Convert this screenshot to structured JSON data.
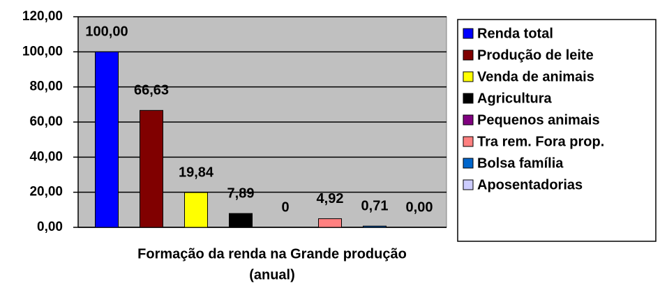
{
  "chart_data": {
    "type": "bar",
    "xlabel": [
      "Formação da renda na Grande produção",
      "(anual)"
    ],
    "series": [
      {
        "name": "Renda total",
        "color": "#0000ff",
        "values": [
          100
        ],
        "value_labels": [
          "100,00"
        ]
      },
      {
        "name": "Produção de leite",
        "color": "#800000",
        "values": [
          66.63
        ],
        "value_labels": [
          "66,63"
        ]
      },
      {
        "name": "Venda de animais",
        "color": "#ffff00",
        "values": [
          19.84
        ],
        "value_labels": [
          "19,84"
        ]
      },
      {
        "name": "Agricultura",
        "color": "#000000",
        "values": [
          7.89
        ],
        "value_labels": [
          "7,89"
        ]
      },
      {
        "name": "Pequenos animais",
        "color": "#800080",
        "values": [
          0
        ],
        "value_labels": [
          "0"
        ]
      },
      {
        "name": "Tra rem. Fora prop.",
        "color": "#ff8080",
        "values": [
          4.92
        ],
        "value_labels": [
          "4,92"
        ]
      },
      {
        "name": "Bolsa família",
        "color": "#0066cc",
        "values": [
          0.71
        ],
        "value_labels": [
          "0,71"
        ]
      },
      {
        "name": "Aposentadorias",
        "color": "#ccccff",
        "values": [
          0
        ],
        "value_labels": [
          "0,00"
        ]
      }
    ],
    "ylim": [
      0,
      120
    ],
    "yticks": [
      {
        "value": 0,
        "label": "0,00"
      },
      {
        "value": 20,
        "label": "20,00"
      },
      {
        "value": 40,
        "label": "40,00"
      },
      {
        "value": 60,
        "label": "60,00"
      },
      {
        "value": 80,
        "label": "80,00"
      },
      {
        "value": 100,
        "label": "100,00"
      },
      {
        "value": 120,
        "label": "120,00"
      }
    ],
    "grid": true,
    "legend": "right"
  }
}
